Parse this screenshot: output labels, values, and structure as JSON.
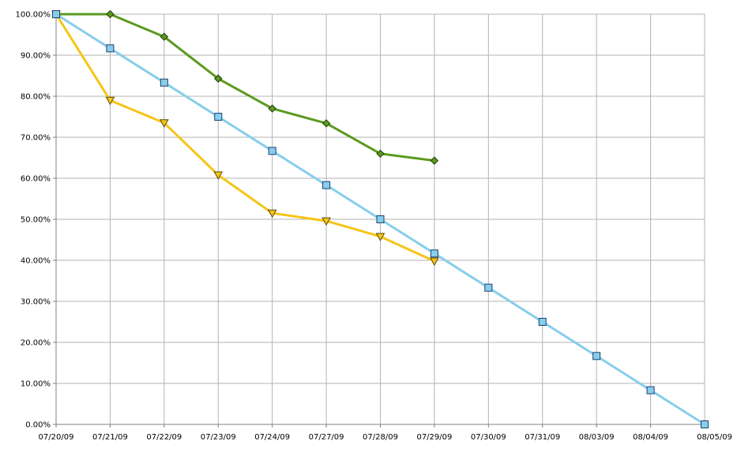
{
  "chart_data": {
    "type": "line",
    "title": "",
    "xlabel": "",
    "ylabel": "",
    "categories": [
      "07/20/09",
      "07/21/09",
      "07/22/09",
      "07/23/09",
      "07/24/09",
      "07/27/09",
      "07/28/09",
      "07/29/09",
      "07/30/09",
      "07/31/09",
      "08/03/09",
      "08/04/09",
      "08/05/09"
    ],
    "y_tick_labels": [
      "0.00%",
      "10.00%",
      "20.00%",
      "30.00%",
      "40.00%",
      "50.00%",
      "60.00%",
      "70.00%",
      "80.00%",
      "90.00%",
      "100.00%"
    ],
    "ylim": [
      0,
      100
    ],
    "grid": true,
    "legend": "none",
    "series": [
      {
        "color": "#87ceeb",
        "marker": "square",
        "values": [
          100,
          91.67,
          83.33,
          75,
          66.67,
          58.33,
          50,
          41.67,
          33.33,
          25,
          16.67,
          8.33,
          0
        ]
      },
      {
        "color": "#5c9a1e",
        "marker": "diamond",
        "values": [
          100,
          100,
          94.5,
          84.3,
          77,
          73.4,
          66,
          64.3,
          null,
          null,
          null,
          null,
          null
        ]
      },
      {
        "color": "#f5c518",
        "marker": "triangle-down",
        "values": [
          100,
          79,
          73.5,
          60.8,
          51.5,
          49.6,
          45.8,
          39.8,
          null,
          null,
          null,
          null,
          null
        ]
      }
    ]
  }
}
